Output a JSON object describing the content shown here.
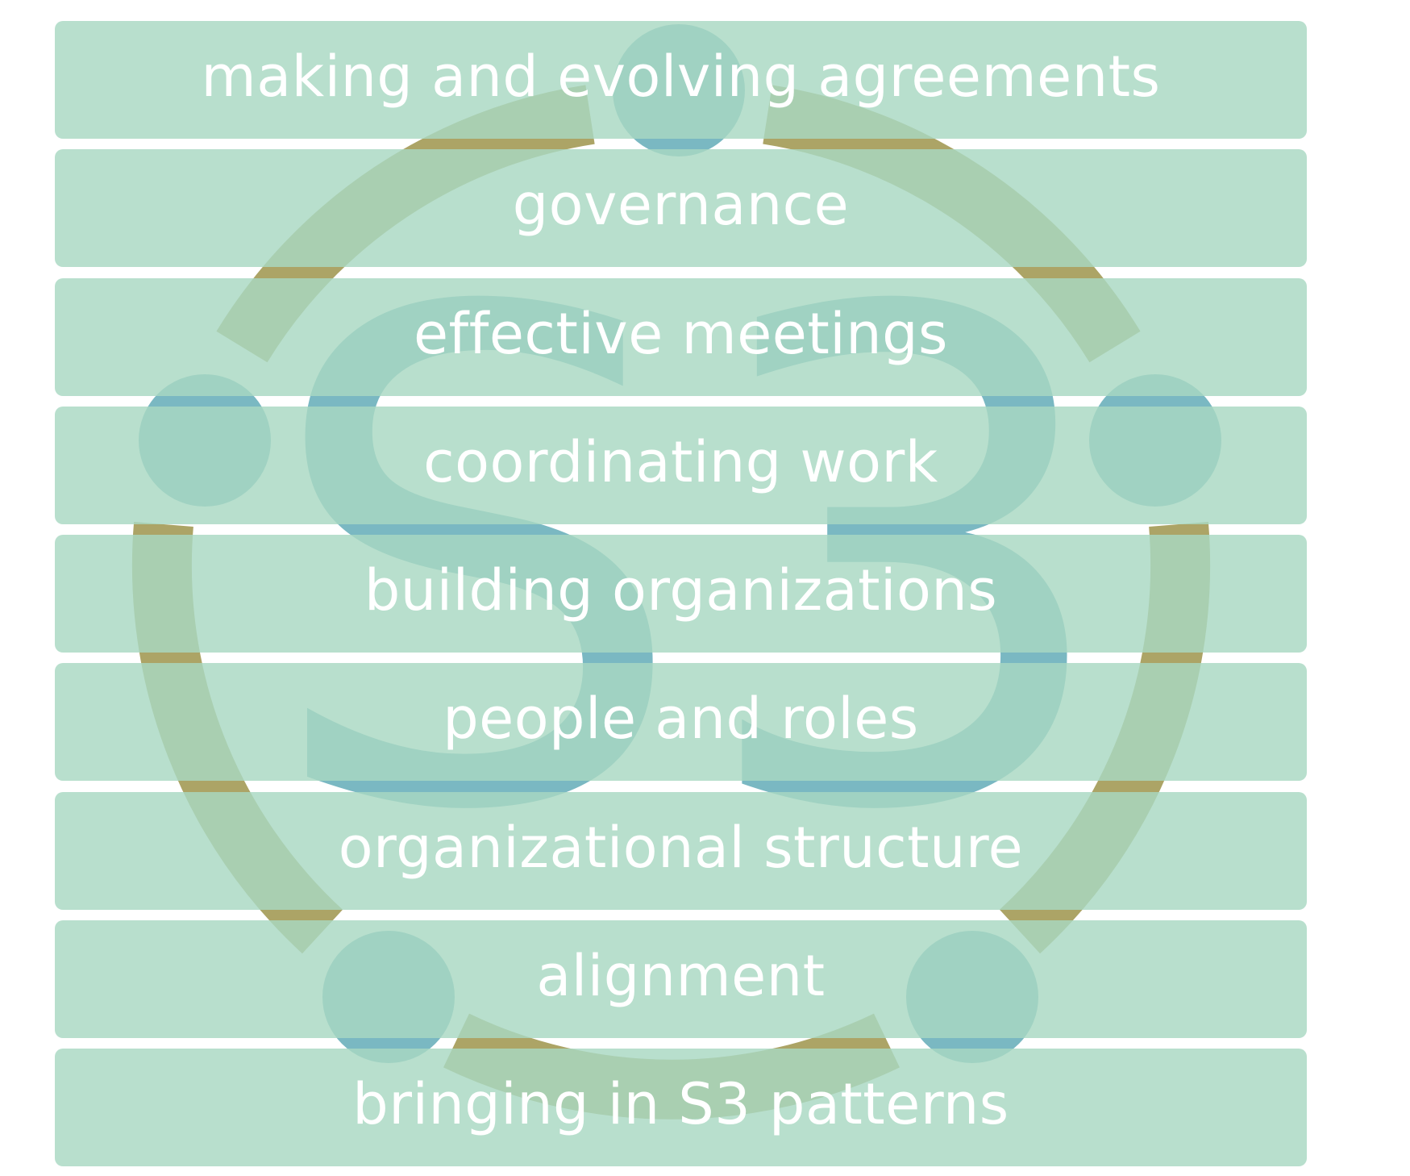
{
  "logo": {
    "text": "S3",
    "ring_color": "#aca466",
    "node_color": "#7ab8c2"
  },
  "band_color": "#a8d8c2",
  "label_color": "#ffffff",
  "topics": [
    {
      "label": "making and evolving agreements"
    },
    {
      "label": "governance"
    },
    {
      "label": "effective meetings"
    },
    {
      "label": "coordinating work"
    },
    {
      "label": "building organizations"
    },
    {
      "label": "people and roles"
    },
    {
      "label": "organizational structure"
    },
    {
      "label": "alignment"
    },
    {
      "label": "bringing in S3 patterns"
    }
  ]
}
